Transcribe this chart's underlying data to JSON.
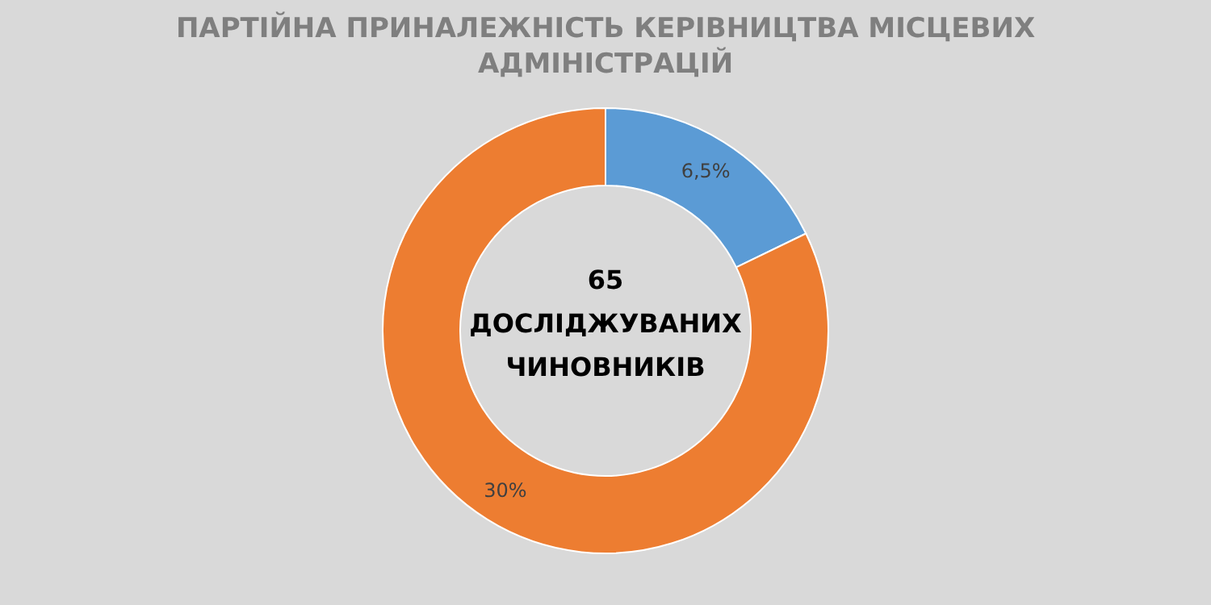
{
  "chart_data": {
    "type": "donut",
    "title": "ПАРТІЙНА ПРИНАЛЕЖНІСТЬ КЕРІВНИЦТВА МІСЦЕВИХ\nАДМІНІСТРАЦІЙ",
    "categories": [
      null,
      null
    ],
    "values": [
      6.5,
      30
    ],
    "colors": [
      "#5b9bd5",
      "#ed7d31"
    ],
    "value_labels": [
      "6,5%",
      "30%"
    ],
    "annotations": [
      "65\nДОСЛІДЖУВАНИХ\nЧИНОВНИКІВ"
    ]
  }
}
